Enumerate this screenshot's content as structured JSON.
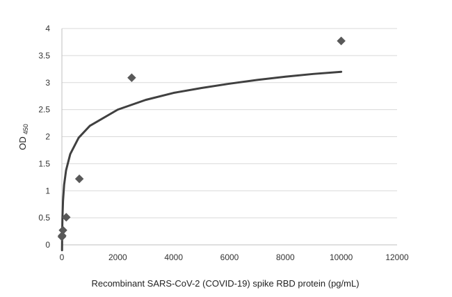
{
  "chart_data": {
    "type": "scatter",
    "xlabel": "Recombinant SARS-CoV-2 (COVID-19) spike RBD protein (pg/mL)",
    "ylabel": "OD",
    "ylabel_subscript": "450",
    "xlim": [
      0,
      12000
    ],
    "ylim": [
      0,
      4
    ],
    "x_ticks": [
      0,
      2000,
      4000,
      6000,
      8000,
      10000,
      12000
    ],
    "y_ticks": [
      0,
      0.5,
      1,
      1.5,
      2,
      2.5,
      3,
      3.5,
      4
    ],
    "y_tick_labels": [
      "0",
      "0.5",
      "1",
      "1.5",
      "2",
      "2.5",
      "3",
      "3.5",
      "4"
    ],
    "grid": "horizontal",
    "legend": "none",
    "series": [
      {
        "type": "scatter",
        "marker": "diamond",
        "color": "#595959",
        "points": [
          {
            "x": 0,
            "y": 0.15
          },
          {
            "x": 10,
            "y": 0.17
          },
          {
            "x": 39,
            "y": 0.27
          },
          {
            "x": 156,
            "y": 0.51
          },
          {
            "x": 625,
            "y": 1.22
          },
          {
            "x": 2500,
            "y": 3.09
          },
          {
            "x": 10000,
            "y": 3.77
          }
        ]
      },
      {
        "type": "line",
        "role": "logarithmic-fit",
        "color": "#404040",
        "x": [
          5,
          10,
          20,
          40,
          80,
          150,
          300,
          600,
          1000,
          2000,
          3000,
          4000,
          5000,
          6000,
          7000,
          8000,
          9000,
          10000
        ],
        "y": [
          -0.1,
          0.2,
          0.5,
          0.81,
          1.11,
          1.38,
          1.68,
          1.98,
          2.2,
          2.5,
          2.68,
          2.81,
          2.9,
          2.98,
          3.05,
          3.11,
          3.16,
          3.2
        ]
      }
    ]
  }
}
